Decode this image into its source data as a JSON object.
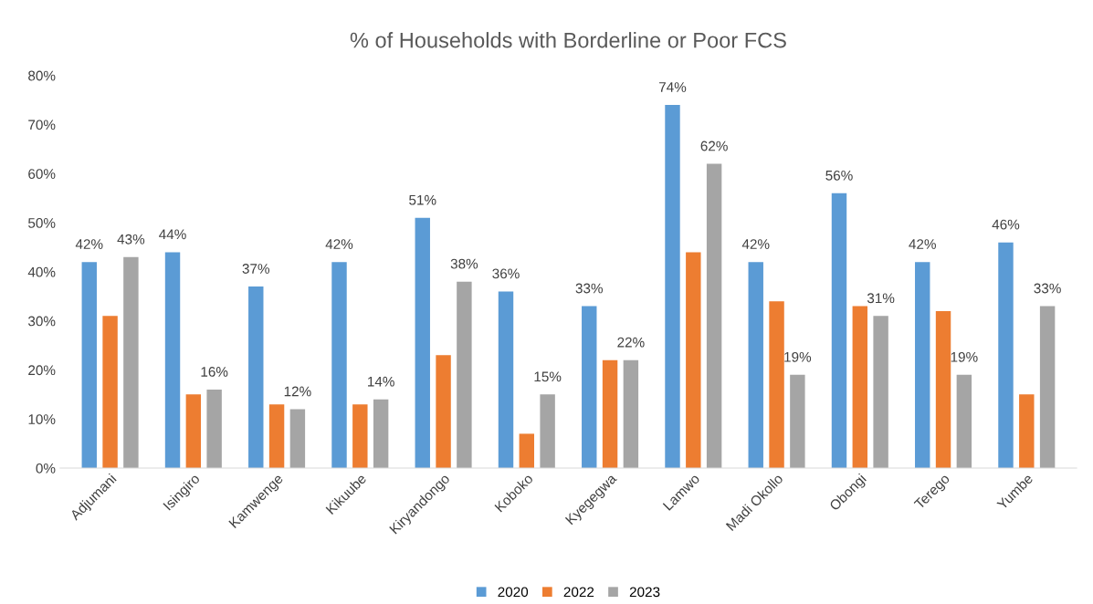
{
  "chart_data": {
    "type": "bar",
    "title": "% of Households with Borderline or Poor FCS",
    "categories": [
      "Adjumani",
      "Isingiro",
      "Kamwenge",
      "Kikuube",
      "Kiryandongo",
      "Koboko",
      "Kyegegwa",
      "Lamwo",
      "Madi Okollo",
      "Obongi",
      "Terego",
      "Yumbe"
    ],
    "series": [
      {
        "name": "2020",
        "color": "#5b9bd5",
        "values": [
          42,
          44,
          37,
          42,
          51,
          36,
          33,
          74,
          42,
          56,
          42,
          46
        ],
        "value_labels": [
          "42%",
          "44%",
          "37%",
          "42%",
          "51%",
          "36%",
          "33%",
          "74%",
          "42%",
          "56%",
          "42%",
          "46%"
        ]
      },
      {
        "name": "2022",
        "color": "#ed7d31",
        "values": [
          31,
          15,
          13,
          13,
          23,
          7,
          22,
          44,
          34,
          33,
          32,
          15
        ]
      },
      {
        "name": "2023",
        "color": "#a5a5a5",
        "values": [
          43,
          16,
          12,
          14,
          38,
          15,
          22,
          62,
          19,
          31,
          19,
          33
        ],
        "value_labels": [
          "43%",
          "16%",
          "12%",
          "14%",
          "38%",
          "15%",
          "22%",
          "62%",
          "19%",
          "31%",
          "19%",
          "33%"
        ]
      }
    ],
    "ylim": [
      0,
      80
    ],
    "yticks": [
      {
        "value": 0,
        "label": "0%"
      },
      {
        "value": 10,
        "label": "10%"
      },
      {
        "value": 20,
        "label": "20%"
      },
      {
        "value": 30,
        "label": "30%"
      },
      {
        "value": 40,
        "label": "40%"
      },
      {
        "value": 50,
        "label": "50%"
      },
      {
        "value": 60,
        "label": "60%"
      },
      {
        "value": 70,
        "label": "70%"
      },
      {
        "value": 80,
        "label": "80%"
      }
    ],
    "grid": false,
    "legend": "bottom"
  }
}
